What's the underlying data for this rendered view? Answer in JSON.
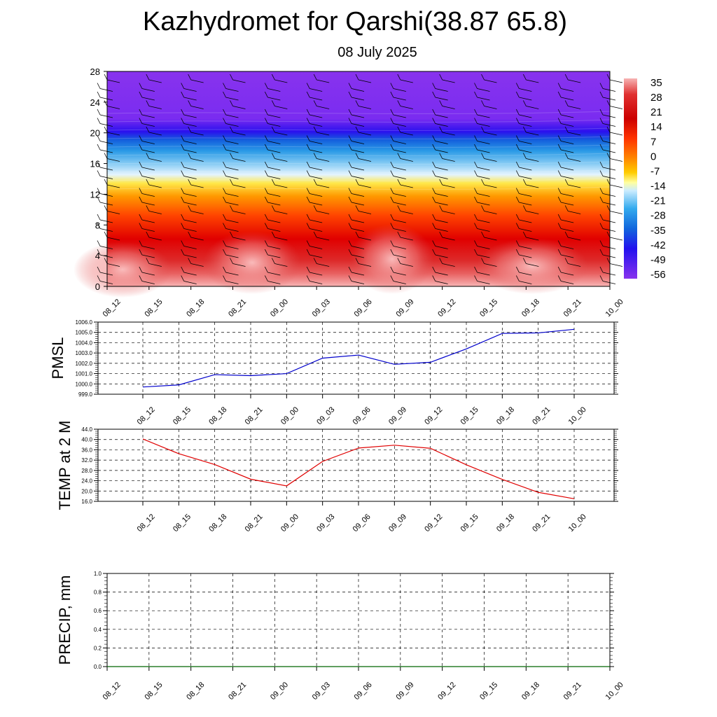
{
  "title": "Kazhydromet for Qarshi(38.87 65.8)",
  "subtitle": "08 July 2025",
  "colors": {
    "pmsl_line": "#0000cc",
    "temp_line": "#e00000",
    "precip_line": "#006400",
    "grid": "#000000"
  },
  "chart_data": [
    {
      "type": "heatmap",
      "title": "",
      "xlabel": "",
      "ylabel": "",
      "x": [
        "08_12",
        "08_15",
        "08_18",
        "08_21",
        "09_00",
        "09_03",
        "09_06",
        "09_09",
        "09_12",
        "09_15",
        "09_18",
        "09_21",
        "10_00"
      ],
      "yticks": [
        0,
        4,
        8,
        12,
        16,
        20,
        24,
        28
      ],
      "ylim": [
        0,
        28
      ],
      "colorbar_ticks": [
        35,
        28,
        21,
        14,
        7,
        0,
        -7,
        -14,
        -21,
        -28,
        -35,
        -42,
        -49,
        -56
      ],
      "overlay": "wind-barbs",
      "legend_position": "right"
    },
    {
      "type": "line",
      "ylabel": "PMSL",
      "x": [
        "08_12",
        "08_15",
        "08_18",
        "08_21",
        "09_00",
        "09_03",
        "09_06",
        "09_09",
        "09_12",
        "09_15",
        "09_18",
        "09_21",
        "10_00"
      ],
      "yticks": [
        "999.0",
        "1000.0",
        "1001.0",
        "1002.0",
        "1003.0",
        "1004.0",
        "1005.0",
        "1006.0"
      ],
      "ylim": [
        999.0,
        1006.0
      ],
      "grid": true,
      "series": [
        {
          "values": [
            999.7,
            999.9,
            1000.9,
            1000.8,
            1001.0,
            1002.5,
            1002.8,
            1001.9,
            1002.1,
            1003.4,
            1004.9,
            1004.95,
            1005.3
          ]
        }
      ]
    },
    {
      "type": "line",
      "ylabel": "TEMP at 2 M",
      "x": [
        "08_12",
        "08_15",
        "08_18",
        "08_21",
        "09_00",
        "09_03",
        "09_06",
        "09_09",
        "09_12",
        "09_15",
        "09_18",
        "09_21",
        "10_00"
      ],
      "yticks": [
        "16.0",
        "20.0",
        "24.0",
        "28.0",
        "32.0",
        "36.0",
        "40.0",
        "44.0"
      ],
      "ylim": [
        16.0,
        44.0
      ],
      "grid": true,
      "series": [
        {
          "values": [
            40.2,
            34.5,
            30.3,
            24.6,
            22.0,
            31.5,
            36.7,
            37.8,
            36.6,
            30.2,
            24.5,
            19.5,
            17.0
          ]
        }
      ]
    },
    {
      "type": "line",
      "ylabel": "PRECIP, mm",
      "x": [
        "08_12",
        "08_15",
        "08_18",
        "08_21",
        "09_00",
        "09_03",
        "09_06",
        "09_09",
        "09_12",
        "09_15",
        "09_18",
        "09_21",
        "10_00"
      ],
      "yticks": [
        "0.0",
        "0.2",
        "0.4",
        "0.6",
        "0.8",
        "1.0"
      ],
      "ylim": [
        0.0,
        1.0
      ],
      "grid": true,
      "series": [
        {
          "values": [
            0,
            0,
            0,
            0,
            0,
            0,
            0,
            0,
            0,
            0,
            0,
            0,
            0
          ]
        }
      ]
    }
  ]
}
